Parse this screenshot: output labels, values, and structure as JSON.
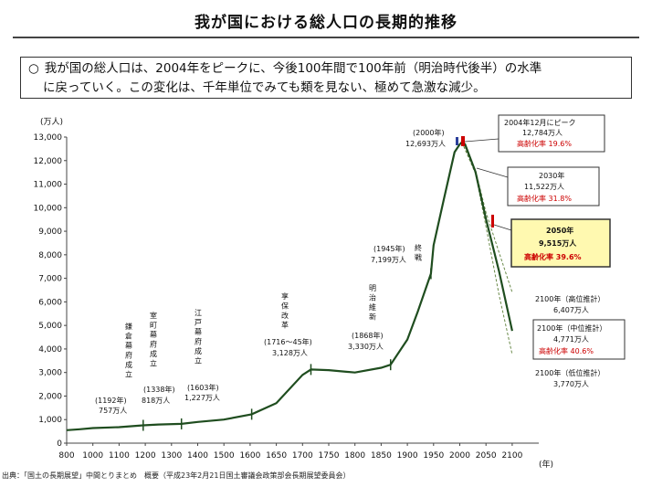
{
  "title": "我が国における総人口の長期的推移",
  "summary": {
    "bullet": "○",
    "line1": "我が国の総人口は、2004年をピークに、今後100年間で100年前（明治時代後半）の水準",
    "line2": "に戻っていく。この変化は、千年単位でみても類を見ない、極めて急激な減少。"
  },
  "source": "出典：「国土の長期展望」中間とりまとめ　概要（平成23年2月21日国土審議会政策部会長期展望委員会）",
  "colors": {
    "line": "#1f4d1f",
    "highlight_red": "#cc0000",
    "highlight_fill": "#fff9b0"
  },
  "chart_data": {
    "type": "line",
    "xlabel_unit": "(年)",
    "ylabel_unit": "(万人)",
    "xlim": [
      800,
      2100
    ],
    "ylim": [
      0,
      13000
    ],
    "x_ticks": [
      "800",
      "1000",
      "1100",
      "1200",
      "1300",
      "1400",
      "1500",
      "1600",
      "1650",
      "1700",
      "1750",
      "1800",
      "1850",
      "1900",
      "1950",
      "2000",
      "2050",
      "2100"
    ],
    "y_ticks": [
      "0",
      "1,000",
      "2,000",
      "3,000",
      "4,000",
      "5,000",
      "6,000",
      "7,000",
      "8,000",
      "9,000",
      "10,000",
      "11,000",
      "12,000",
      "13,000"
    ],
    "series": [
      {
        "points": [
          [
            800,
            550
          ],
          [
            900,
            590
          ],
          [
            1000,
            640
          ],
          [
            1100,
            680
          ],
          [
            1192,
            757
          ],
          [
            1250,
            790
          ],
          [
            1338,
            818
          ],
          [
            1400,
            900
          ],
          [
            1500,
            1000
          ],
          [
            1603,
            1227
          ],
          [
            1650,
            1700
          ],
          [
            1700,
            2900
          ],
          [
            1716,
            3128
          ],
          [
            1750,
            3100
          ],
          [
            1800,
            3000
          ],
          [
            1850,
            3200
          ],
          [
            1868,
            3330
          ],
          [
            1900,
            4400
          ],
          [
            1920,
            5600
          ],
          [
            1945,
            7199
          ],
          [
            1950,
            8400
          ],
          [
            1970,
            10400
          ],
          [
            1990,
            12360
          ],
          [
            2000,
            12693
          ],
          [
            2004,
            12784
          ],
          [
            2010,
            12700
          ],
          [
            2030,
            11522
          ],
          [
            2050,
            9515
          ],
          [
            2075,
            7300
          ],
          [
            2100,
            4771
          ]
        ]
      },
      {
        "points": [
          [
            2004,
            12784
          ],
          [
            2030,
            11600
          ],
          [
            2050,
            9800
          ],
          [
            2075,
            8100
          ],
          [
            2100,
            6407
          ]
        ]
      },
      {
        "points": [
          [
            2004,
            12784
          ],
          [
            2030,
            11450
          ],
          [
            2050,
            9200
          ],
          [
            2075,
            6300
          ],
          [
            2100,
            3770
          ]
        ]
      }
    ],
    "annotations": {
      "kamakura": {
        "label": "鎌倉幕府成立",
        "year_text": "(1192年)",
        "value_text": "757万人"
      },
      "muromachi": {
        "label": "室町幕府成立",
        "year_text": "(1338年)",
        "value_text": "818万人"
      },
      "edo": {
        "label": "江戸幕府成立",
        "year_text": "(1603年)",
        "value_text": "1,227万人"
      },
      "kyoho": {
        "label": "享保改革",
        "year_text": "(1716～45年)",
        "value_text": "3,128万人"
      },
      "meiji": {
        "label": "明治維新",
        "year_text": "(1868年)",
        "value_text": "3,330万人"
      },
      "war": {
        "label": "終戦",
        "year_text": "(1945年)",
        "value_text": "7,199万人"
      },
      "y2000": {
        "year_text": "(2000年)",
        "value_text": "12,693万人"
      },
      "peak": {
        "line1": "2004年12月にピーク",
        "line2": "12,784万人",
        "aging": "高齢化率 19.6%"
      },
      "y2030": {
        "line1": "2030年",
        "line2": "11,522万人",
        "aging": "高齢化率 31.8%"
      },
      "y2050": {
        "line1": "2050年",
        "line2": "9,515万人",
        "aging": "高齢化率 39.6%"
      },
      "high": {
        "line1": "2100年（高位推計）",
        "line2": "6,407万人"
      },
      "mid": {
        "line1": "2100年（中位推計）",
        "line2": "4,771万人",
        "aging": "高齢化率 40.6%"
      },
      "low": {
        "line1": "2100年（低位推計）",
        "line2": "3,770万人"
      }
    }
  }
}
